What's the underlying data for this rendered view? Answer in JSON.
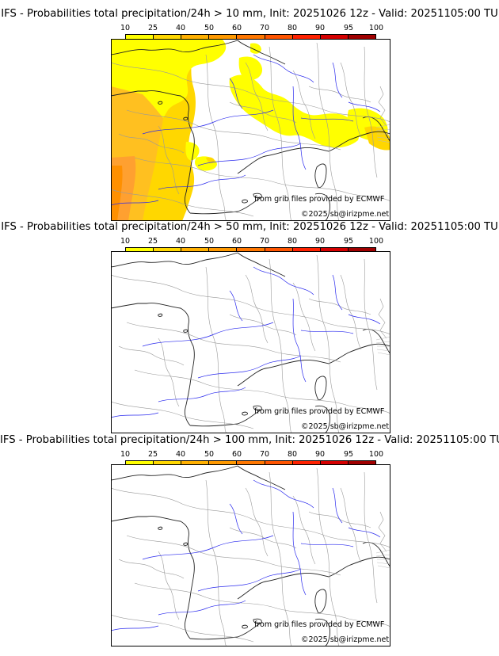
{
  "colorbar": {
    "ticks": [
      "10",
      "25",
      "40",
      "50",
      "60",
      "70",
      "80",
      "90",
      "95",
      "100"
    ],
    "colors": [
      "#ffff00",
      "#ffd700",
      "#ffb000",
      "#ff9900",
      "#ff7700",
      "#ff5500",
      "#ff2200",
      "#d50000",
      "#a00000",
      "#6a0000"
    ]
  },
  "panels": [
    {
      "title": "IFS - Probabilities total precipitation/24h > 10 mm, Init: 20251026 12z - Valid: 20251105:00 TU",
      "credit_source": "from grib files provided by ECMWF",
      "copyright": "©2025 sb@irizpme.net",
      "has_precipitation": true
    },
    {
      "title": "IFS - Probabilities total precipitation/24h > 50 mm, Init: 20251026 12z - Valid: 20251105:00 TU",
      "credit_source": "from grib files provided by ECMWF",
      "copyright": "©2025 sb@irizpme.net",
      "has_precipitation": false
    },
    {
      "title": "IFS - Probabilities total precipitation/24h > 100 mm, Init: 20251026 12z - Valid: 20251105:00 TU",
      "credit_source": "from grib files provided by ECMWF",
      "copyright": "©2025 sb@irizpme.net",
      "has_precipitation": false
    }
  ]
}
